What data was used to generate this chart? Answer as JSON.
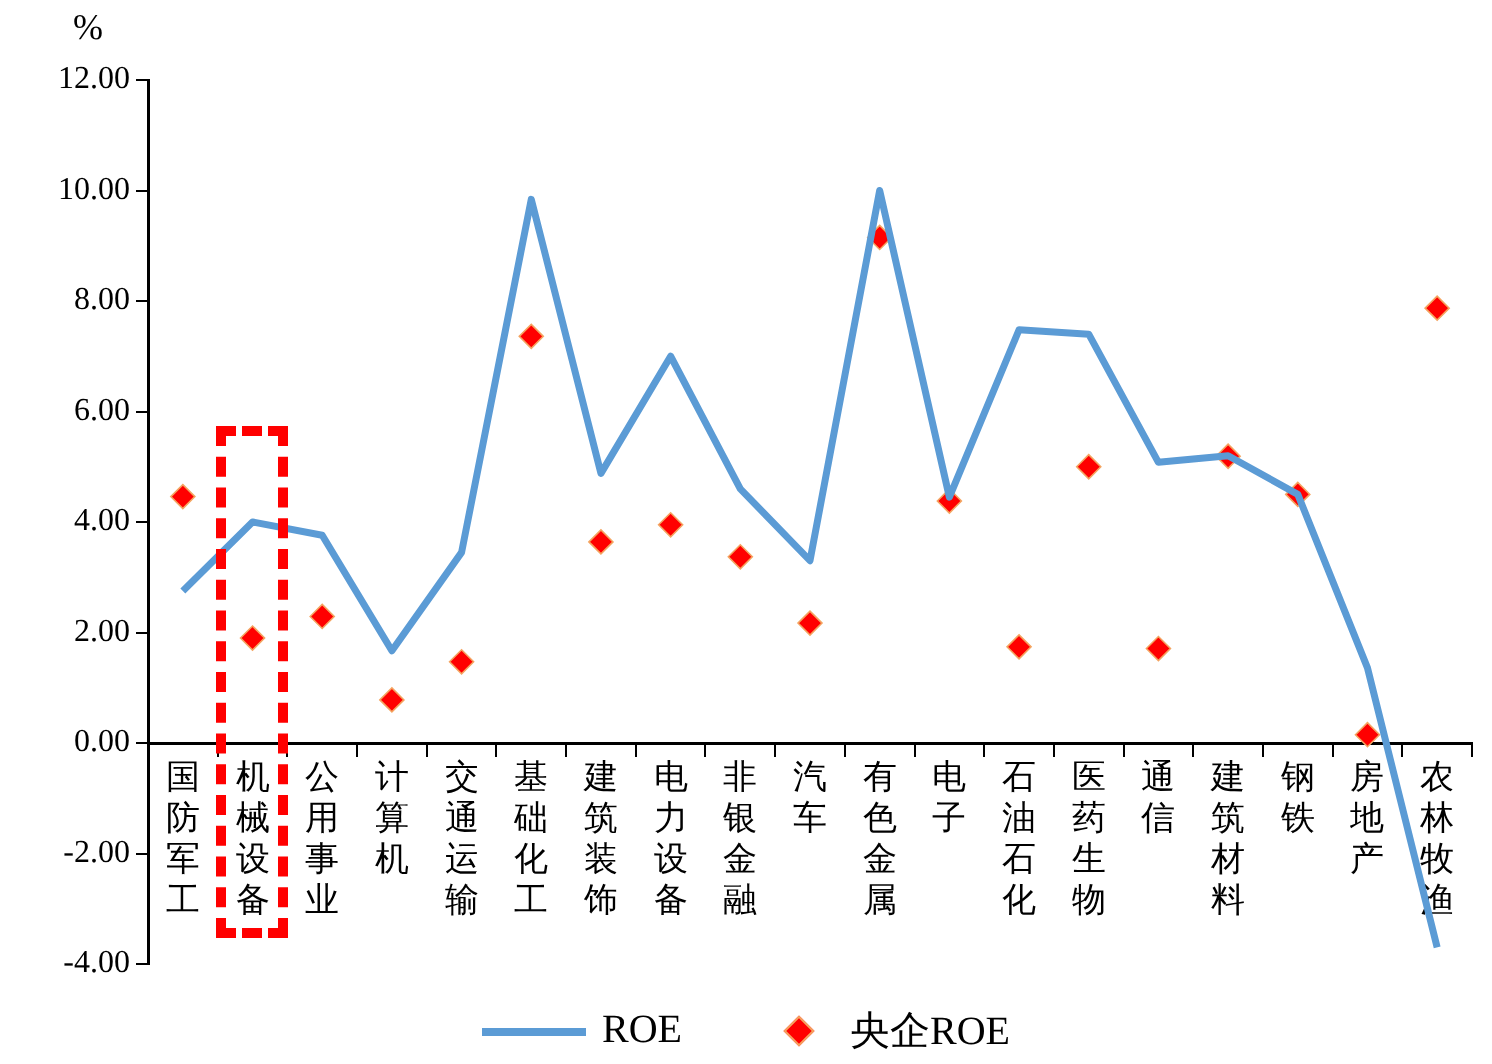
{
  "chart_data": {
    "type": "line",
    "ylabel": "%",
    "categories": [
      "国防军工",
      "机械设备",
      "公用事业",
      "计算机",
      "交通运输",
      "基础化工",
      "建筑装饰",
      "电力设备",
      "非银金融",
      "汽车",
      "有色金属",
      "电子",
      "石油石化",
      "医药生物",
      "通信",
      "建筑材料",
      "钢铁",
      "房地产",
      "农林牧渔"
    ],
    "series": [
      {
        "name": "ROE",
        "color": "#5b9bd5",
        "marker": "none",
        "values": [
          2.75,
          4.0,
          3.76,
          1.67,
          3.45,
          9.84,
          4.88,
          7.0,
          4.6,
          3.3,
          10.0,
          4.45,
          7.48,
          7.4,
          5.08,
          5.2,
          4.5,
          1.36,
          -3.7
        ]
      },
      {
        "name": "央企ROE",
        "type": "scatter",
        "color": "#ff0000",
        "marker": "diamond",
        "values": [
          4.46,
          1.9,
          2.29,
          0.78,
          1.47,
          7.36,
          3.64,
          3.95,
          3.37,
          2.17,
          9.15,
          4.38,
          1.74,
          5.0,
          1.71,
          5.19,
          4.5,
          0.15,
          7.87
        ]
      }
    ],
    "ylim": [
      -4,
      12
    ],
    "yticks": [
      {
        "value": -4,
        "label": "-4.00"
      },
      {
        "value": -2,
        "label": "-2.00"
      },
      {
        "value": 0,
        "label": "0.00"
      },
      {
        "value": 2,
        "label": "2.00"
      },
      {
        "value": 4,
        "label": "4.00"
      },
      {
        "value": 6,
        "label": "6.00"
      },
      {
        "value": 8,
        "label": "8.00"
      },
      {
        "value": 10,
        "label": "10.00"
      },
      {
        "value": 12,
        "label": "12.00"
      }
    ],
    "grid": false,
    "legend": "bottom"
  }
}
